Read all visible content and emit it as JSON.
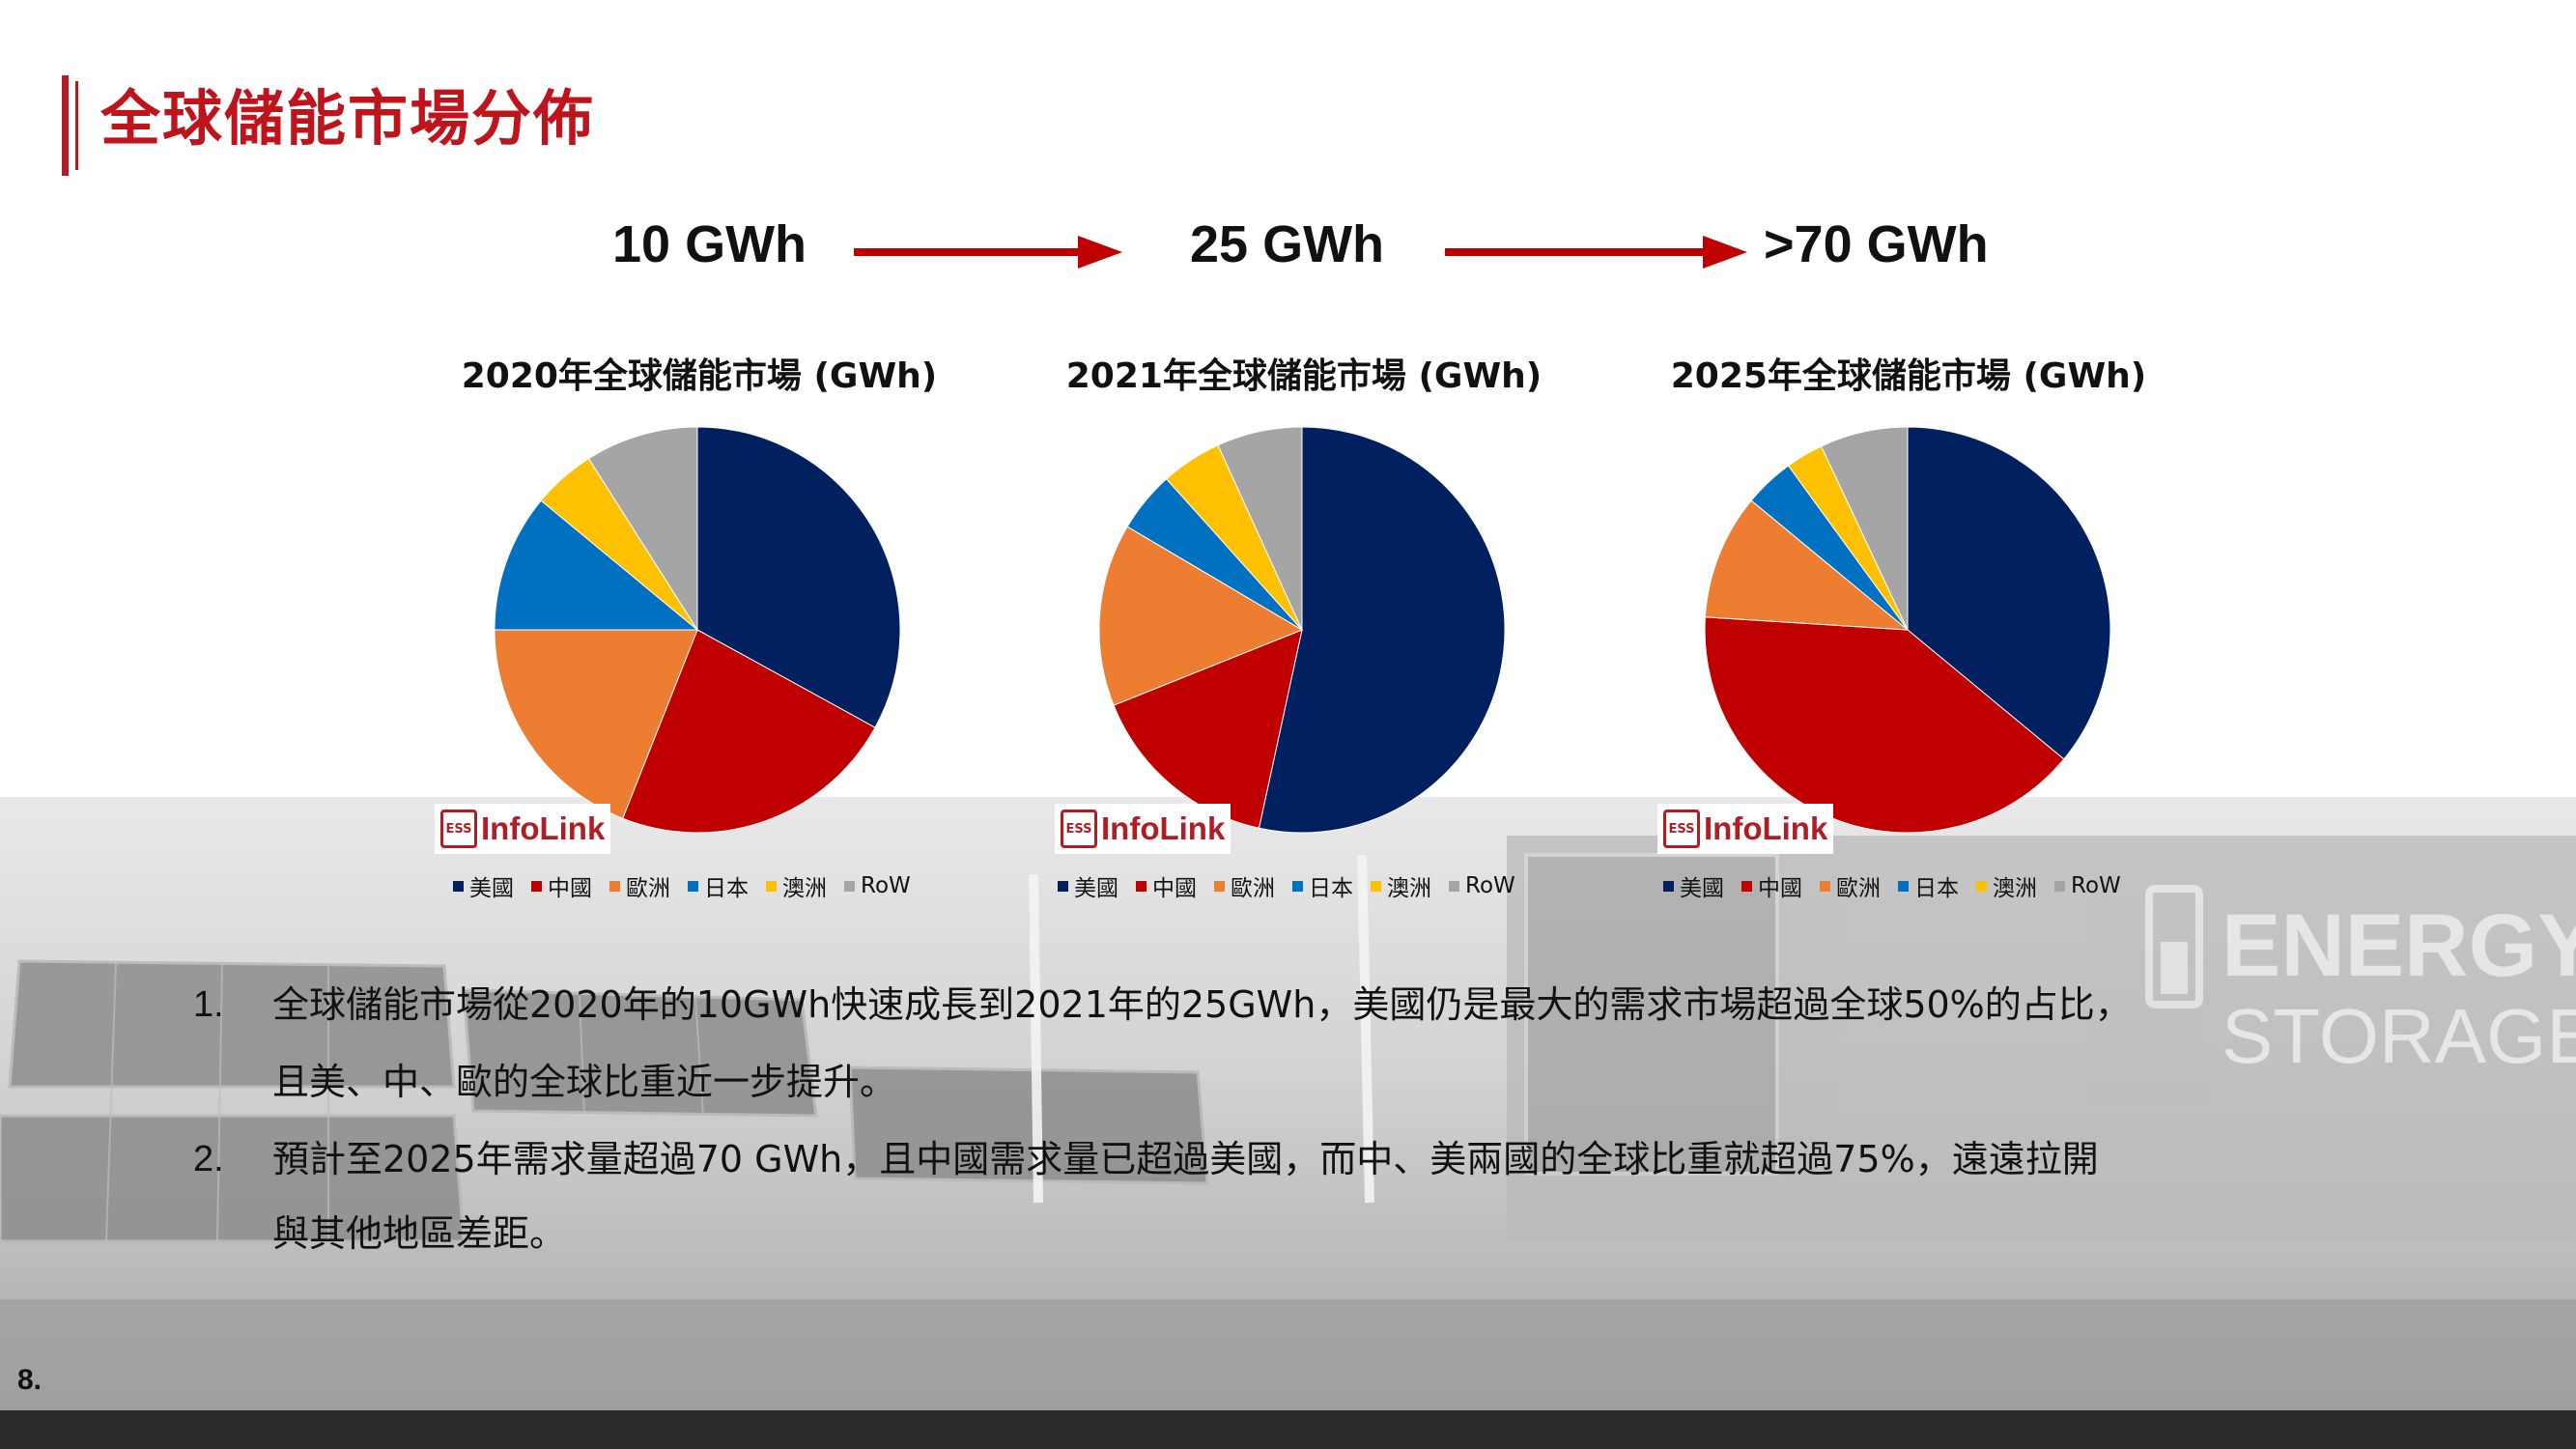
{
  "page": {
    "title": "全球儲能市場分佈",
    "number": "8."
  },
  "growth": [
    "10 GWh",
    "25 GWh",
    ">70 GWh"
  ],
  "brand": {
    "icon_text": "ESS",
    "name": "InfoLink"
  },
  "legend": [
    "美國",
    "中國",
    "歐洲",
    "日本",
    "澳洲",
    "RoW"
  ],
  "colors": {
    "美國": "#002060",
    "中國": "#c00000",
    "歐洲": "#ed7d31",
    "日本": "#0070c0",
    "澳洲": "#ffc000",
    "RoW": "#a5a5a5",
    "accent": "#c0141c"
  },
  "background_text": [
    "ENERGY",
    "STORAGE"
  ],
  "bullets": [
    {
      "num": "1.",
      "lines": [
        "全球儲能市場從2020年的10GWh快速成長到2021年的25GWh，美國仍是最大的需求市場超過全球50%的占比，",
        "且美、中、歐的全球比重近一步提升。"
      ]
    },
    {
      "num": "2.",
      "lines": [
        "預計至2025年需求量超過70 GWh，且中國需求量已超過美國，而中、美兩國的全球比重就超過75%，遠遠拉開",
        "與其他地區差距。"
      ]
    }
  ],
  "chart_data": [
    {
      "type": "pie",
      "title": "2020年全球儲能市場 (GWh)",
      "categories": [
        "美國",
        "中國",
        "歐洲",
        "日本",
        "澳洲",
        "RoW"
      ],
      "values": [
        33,
        23,
        19,
        11,
        5,
        9
      ]
    },
    {
      "type": "pie",
      "title": "2021年全球儲能市場 (GWh)",
      "categories": [
        "美國",
        "中國",
        "歐洲",
        "日本",
        "澳洲",
        "RoW"
      ],
      "values": [
        55,
        16,
        15,
        5,
        5,
        7
      ]
    },
    {
      "type": "pie",
      "title": "2025年全球儲能市場 (GWh)",
      "categories": [
        "美國",
        "中國",
        "歐洲",
        "日本",
        "澳洲",
        "RoW"
      ],
      "values": [
        36,
        40,
        10,
        4,
        3,
        7
      ]
    }
  ]
}
